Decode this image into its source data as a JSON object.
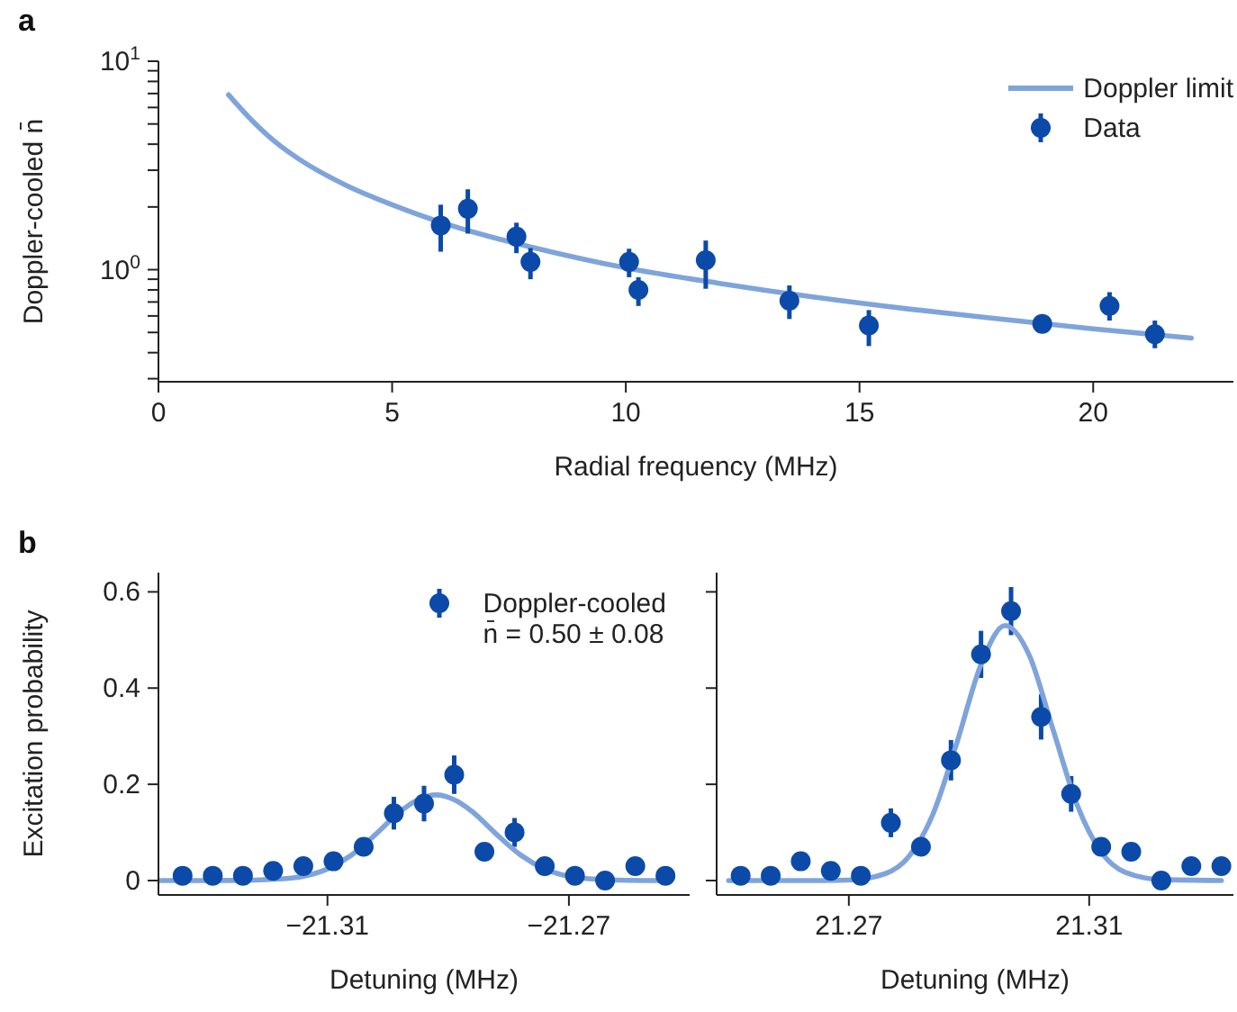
{
  "chart_data": [
    {
      "type": "scatter",
      "title": "a",
      "xlabel": "Radial frequency (MHz)",
      "ylabel": "Doppler-cooled n̄",
      "xlim": [
        0,
        23
      ],
      "xticks": [
        0,
        5,
        10,
        15,
        20
      ],
      "ylim": [
        0.29,
        10
      ],
      "log": "y",
      "yticks": [
        {
          "value": 0.3,
          "label": null
        },
        {
          "value": 0.4,
          "label": null
        },
        {
          "value": 0.5,
          "label": null
        },
        {
          "value": 0.6,
          "label": null
        },
        {
          "value": 0.7,
          "label": null
        },
        {
          "value": 0.8,
          "label": null
        },
        {
          "value": 0.9,
          "label": null
        },
        {
          "value": 1,
          "label": "10$^{0}$"
        },
        {
          "value": 2,
          "label": null
        },
        {
          "value": 3,
          "label": null
        },
        {
          "value": 4,
          "label": null
        },
        {
          "value": 5,
          "label": null
        },
        {
          "value": 6,
          "label": null
        },
        {
          "value": 7,
          "label": null
        },
        {
          "value": 8,
          "label": null
        },
        {
          "value": 9,
          "label": null
        },
        {
          "value": 10,
          "label": "10$^{1}$"
        }
      ],
      "legend": "top right",
      "marker": "circle",
      "series": [
        {
          "name": "Doppler limit",
          "type": "line",
          "marker": "none",
          "color": "#7fa4dc",
          "x": [
            1.5,
            2,
            2.5,
            3,
            4,
            5,
            6,
            7,
            8,
            10,
            12,
            14,
            16,
            18,
            20,
            22.1
          ],
          "values": [
            6.9,
            5.2,
            4.1,
            3.4,
            2.55,
            2.05,
            1.7,
            1.46,
            1.28,
            1.02,
            0.86,
            0.74,
            0.65,
            0.58,
            0.52,
            0.47
          ]
        },
        {
          "name": "Data",
          "color": "#0b4aa8",
          "x": [
            6.04,
            6.62,
            7.66,
            7.96,
            10.07,
            10.27,
            11.71,
            13.5,
            15.2,
            18.91,
            20.35,
            21.32
          ],
          "values": [
            1.63,
            1.96,
            1.44,
            1.09,
            1.09,
            0.8,
            1.11,
            0.71,
            0.54,
            0.55,
            0.67,
            0.49
          ],
          "errors": [
            [
              1.22,
              2.05
            ],
            [
              1.49,
              2.43
            ],
            [
              1.2,
              1.68
            ],
            [
              0.9,
              1.27
            ],
            [
              0.92,
              1.26
            ],
            [
              0.67,
              0.92
            ],
            [
              0.81,
              1.38
            ],
            [
              0.58,
              0.84
            ],
            [
              0.43,
              0.64
            ],
            null,
            [
              0.57,
              0.78
            ],
            [
              0.42,
              0.57
            ]
          ]
        }
      ]
    },
    {
      "type": "scatter",
      "title": "b",
      "xlabel": "Detuning (MHz)",
      "ylabel": "Excitation probability",
      "xlim": [
        -21.338,
        -21.25
      ],
      "xticks": [
        -21.31,
        -21.27
      ],
      "ylim": [
        -0.03,
        0.64
      ],
      "yticks": [
        0,
        0.2,
        0.4,
        0.6
      ],
      "legend": "top right",
      "marker": "circle",
      "annotations": [
        "n̄ = 0.50 ± 0.08"
      ],
      "series": [
        {
          "name": "Doppler-cooled",
          "color": "#0b4aa8",
          "x": [
            -21.334,
            -21.329,
            -21.324,
            -21.319,
            -21.314,
            -21.309,
            -21.304,
            -21.299,
            -21.294,
            -21.289,
            -21.284,
            -21.279,
            -21.274,
            -21.269,
            -21.264,
            -21.259,
            -21.254
          ],
          "values": [
            0.01,
            0.01,
            0.01,
            0.02,
            0.03,
            0.04,
            0.07,
            0.14,
            0.16,
            0.22,
            0.06,
            0.1,
            0.03,
            0.01,
            0,
            0.03,
            0.01
          ],
          "errors": [
            null,
            null,
            null,
            null,
            null,
            null,
            0.018,
            0.034,
            0.037,
            0.04,
            0.017,
            0.03,
            null,
            null,
            null,
            null,
            null
          ]
        },
        {
          "type": "line",
          "marker": "none",
          "color": "#7fa4dc",
          "x": [
            -21.338,
            -21.33,
            -21.322,
            -21.316,
            -21.31,
            -21.306,
            -21.302,
            -21.298,
            -21.295,
            -21.292,
            -21.289,
            -21.286,
            -21.282,
            -21.278,
            -21.274,
            -21.268,
            -21.262,
            -21.254
          ],
          "values": [
            0,
            0,
            0.001,
            0.005,
            0.024,
            0.053,
            0.096,
            0.143,
            0.168,
            0.178,
            0.168,
            0.143,
            0.096,
            0.053,
            0.024,
            0.005,
            0.001,
            0
          ]
        }
      ]
    },
    {
      "type": "scatter",
      "xlabel": "Detuning (MHz)",
      "xlim": [
        21.248,
        21.334
      ],
      "xticks": [
        21.27,
        21.31
      ],
      "ylim": [
        -0.03,
        0.64
      ],
      "yticks": [
        0,
        0.2,
        0.4,
        0.6
      ],
      "tick_labels": "x",
      "marker": "circle",
      "series": [
        {
          "color": "#0b4aa8",
          "x": [
            21.252,
            21.257,
            21.262,
            21.267,
            21.272,
            21.277,
            21.282,
            21.287,
            21.292,
            21.297,
            21.302,
            21.307,
            21.312,
            21.317,
            21.322,
            21.327,
            21.332
          ],
          "values": [
            0.01,
            0.01,
            0.04,
            0.02,
            0.01,
            0.12,
            0.07,
            0.25,
            0.47,
            0.56,
            0.34,
            0.18,
            0.07,
            0.06,
            0,
            0.03,
            0.03
          ],
          "errors": [
            null,
            null,
            null,
            null,
            null,
            0.03,
            0.018,
            0.042,
            0.049,
            0.05,
            0.047,
            0.037,
            0.017,
            0.017,
            null,
            null,
            null
          ]
        },
        {
          "type": "line",
          "marker": "none",
          "color": "#7fa4dc",
          "x": [
            21.25,
            21.262,
            21.27,
            21.276,
            21.28,
            21.284,
            21.288,
            21.292,
            21.296,
            21.3,
            21.304,
            21.308,
            21.312,
            21.316,
            21.322,
            21.332
          ],
          "values": [
            0,
            0,
            0.001,
            0.014,
            0.05,
            0.138,
            0.287,
            0.449,
            0.53,
            0.469,
            0.313,
            0.157,
            0.059,
            0.017,
            0.002,
            0
          ]
        }
      ]
    }
  ]
}
